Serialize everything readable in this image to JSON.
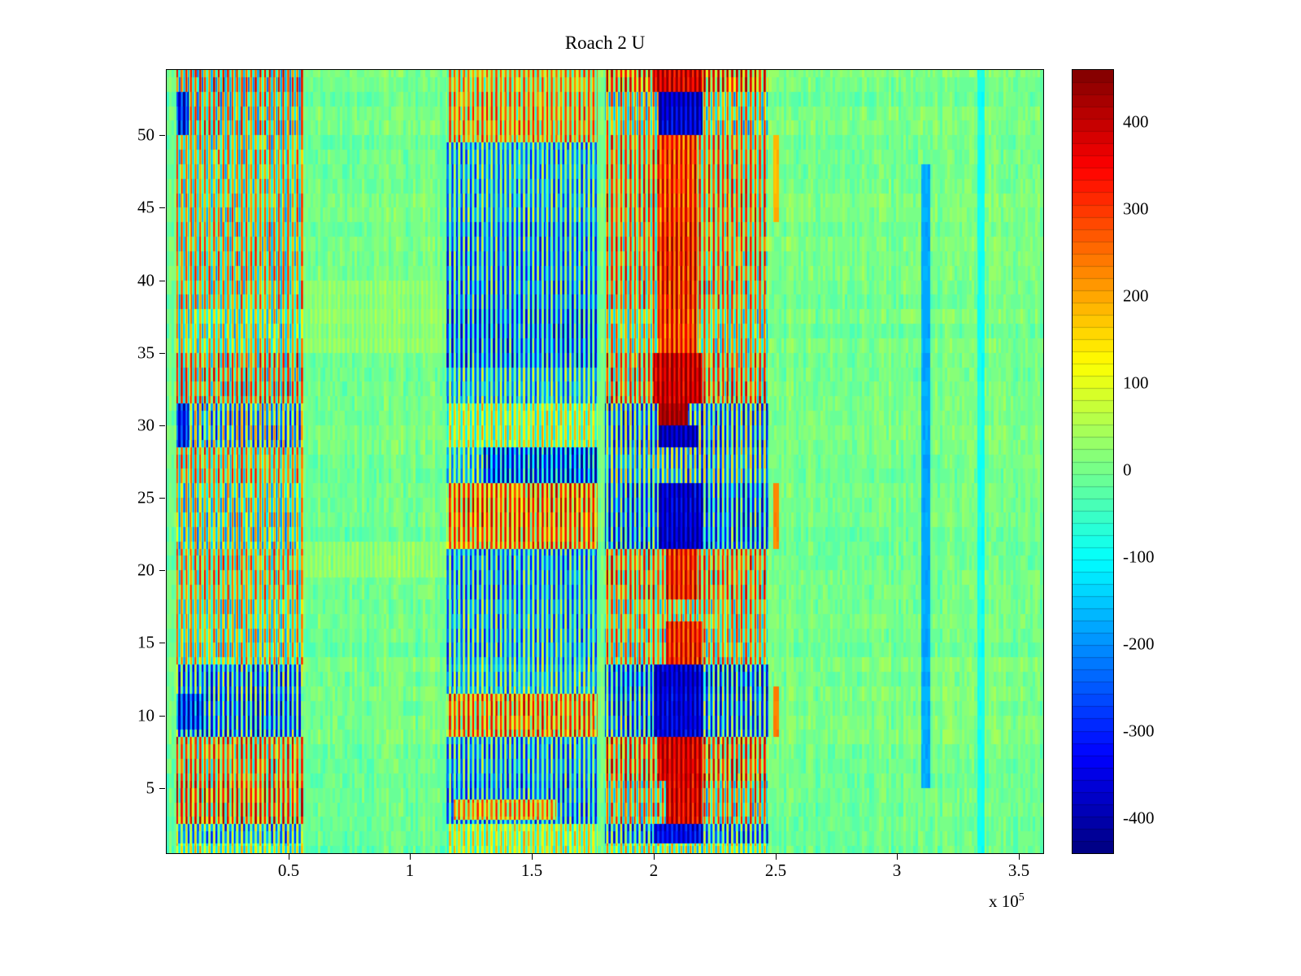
{
  "chart_data": {
    "type": "heatmap",
    "title": "Roach 2 U",
    "colormap": "jet",
    "x_axis": {
      "range_units_1e5": [
        0,
        3.6
      ],
      "ticks": [
        0.5,
        1,
        1.5,
        2,
        2.5,
        3,
        3.5
      ],
      "tick_labels": [
        "0.5",
        "1",
        "1.5",
        "2",
        "2.5",
        "3",
        "3.5"
      ],
      "multiplier_base": "x 10",
      "multiplier_exponent": "5"
    },
    "y_axis": {
      "range": [
        0.5,
        54.5
      ],
      "ticks": [
        5,
        10,
        15,
        20,
        25,
        30,
        35,
        40,
        45,
        50
      ],
      "tick_labels": [
        "5",
        "10",
        "15",
        "20",
        "25",
        "30",
        "35",
        "40",
        "45",
        "50"
      ]
    },
    "colorbar": {
      "range": [
        -440,
        460
      ],
      "ticks": [
        -400,
        -300,
        -200,
        -100,
        0,
        100,
        200,
        300,
        400
      ],
      "tick_labels": [
        "-400",
        "-300",
        "-200",
        "-100",
        "0",
        "100",
        "200",
        "300",
        "400"
      ],
      "levels": 64
    },
    "stripe_period_1e5": 0.019,
    "background": {
      "base_value": 0,
      "noise_amplitude": 55
    },
    "regions_comment": "Estimated activity bands [x0,x1,y0,y1,baseValue,stripeAmplitude]; x in 1e5 units, values in colorbar units",
    "regions": [
      [
        0.04,
        0.56,
        53,
        54.5,
        80,
        380
      ],
      [
        0.04,
        0.56,
        50,
        53,
        60,
        350
      ],
      [
        0.04,
        0.56,
        44,
        50,
        60,
        300
      ],
      [
        0.04,
        0.56,
        38,
        44,
        70,
        310
      ],
      [
        0.04,
        0.56,
        35,
        38,
        30,
        260
      ],
      [
        0.04,
        0.56,
        31.5,
        35,
        110,
        340
      ],
      [
        0.04,
        0.56,
        28.5,
        31.5,
        -60,
        340
      ],
      [
        0.04,
        0.56,
        26,
        28.5,
        90,
        300
      ],
      [
        0.04,
        0.56,
        21.5,
        26,
        20,
        300
      ],
      [
        0.04,
        0.56,
        18,
        21.5,
        90,
        300
      ],
      [
        0.04,
        0.56,
        13.5,
        18,
        50,
        280
      ],
      [
        0.04,
        0.56,
        11.5,
        13.5,
        -140,
        300
      ],
      [
        0.04,
        0.56,
        8.5,
        11.5,
        -170,
        310
      ],
      [
        0.04,
        0.56,
        5.5,
        8.5,
        140,
        300
      ],
      [
        0.04,
        0.56,
        2.5,
        5.5,
        180,
        320
      ],
      [
        0.04,
        0.56,
        1.2,
        2.5,
        -80,
        280
      ],
      [
        0.04,
        0.56,
        0.5,
        1.2,
        20,
        220
      ],
      [
        1.15,
        1.77,
        53,
        54.5,
        120,
        220
      ],
      [
        1.15,
        1.77,
        49.5,
        53,
        140,
        240
      ],
      [
        1.15,
        1.77,
        44,
        49.5,
        -110,
        240
      ],
      [
        1.15,
        1.77,
        38,
        44,
        -140,
        260
      ],
      [
        1.15,
        1.77,
        34,
        38,
        -170,
        280
      ],
      [
        1.15,
        1.77,
        31.5,
        34,
        -90,
        230
      ],
      [
        1.15,
        1.77,
        28.5,
        31.5,
        40,
        200
      ],
      [
        1.15,
        1.77,
        26,
        28.5,
        -80,
        220
      ],
      [
        1.3,
        1.77,
        26,
        28.5,
        -240,
        280
      ],
      [
        1.15,
        1.77,
        21.5,
        26,
        190,
        260
      ],
      [
        1.15,
        1.77,
        18,
        21.5,
        -130,
        250
      ],
      [
        1.15,
        1.77,
        13.5,
        18,
        -110,
        250
      ],
      [
        1.15,
        1.77,
        11.5,
        13.5,
        -90,
        230
      ],
      [
        1.15,
        1.77,
        8.5,
        11.5,
        170,
        260
      ],
      [
        1.15,
        1.77,
        5.5,
        8.5,
        -120,
        250
      ],
      [
        1.15,
        1.77,
        2.5,
        5.5,
        -140,
        260
      ],
      [
        1.18,
        1.6,
        2.8,
        4.2,
        150,
        220
      ],
      [
        1.15,
        1.77,
        0.5,
        2.5,
        60,
        180
      ],
      [
        1.8,
        2.47,
        53,
        54.5,
        200,
        300
      ],
      [
        1.8,
        2.47,
        50,
        53,
        60,
        320
      ],
      [
        1.8,
        2.47,
        44,
        50,
        140,
        300
      ],
      [
        1.8,
        2.47,
        38,
        44,
        120,
        310
      ],
      [
        1.8,
        2.47,
        35,
        38,
        60,
        290
      ],
      [
        1.8,
        2.47,
        31.5,
        35,
        140,
        330
      ],
      [
        1.8,
        2.47,
        28.5,
        31.5,
        -120,
        330
      ],
      [
        1.8,
        2.47,
        26,
        28.5,
        -80,
        300
      ],
      [
        1.8,
        2.47,
        21.5,
        26,
        -160,
        300
      ],
      [
        1.8,
        2.47,
        18,
        21.5,
        140,
        310
      ],
      [
        1.8,
        2.47,
        13.5,
        18,
        90,
        300
      ],
      [
        1.8,
        2.47,
        11.5,
        13.5,
        -180,
        300
      ],
      [
        1.8,
        2.47,
        8.5,
        11.5,
        -150,
        300
      ],
      [
        1.8,
        2.47,
        5.5,
        8.5,
        170,
        310
      ],
      [
        1.8,
        2.47,
        2.5,
        5.5,
        90,
        330
      ],
      [
        1.8,
        2.47,
        1.2,
        2.5,
        -130,
        300
      ],
      [
        1.8,
        2.47,
        0.5,
        1.2,
        40,
        240
      ],
      [
        2.0,
        2.2,
        53,
        54.5,
        380,
        120
      ],
      [
        2.02,
        2.2,
        50,
        53,
        -380,
        100
      ],
      [
        2.02,
        2.18,
        44,
        50,
        300,
        150
      ],
      [
        2.02,
        2.18,
        38,
        44,
        320,
        150
      ],
      [
        2.02,
        2.18,
        35,
        38,
        300,
        150
      ],
      [
        2.0,
        2.2,
        31.5,
        35,
        400,
        100
      ],
      [
        2.02,
        2.14,
        30,
        31.5,
        430,
        60
      ],
      [
        2.02,
        2.18,
        28.5,
        30,
        -400,
        80
      ],
      [
        2.02,
        2.2,
        21.5,
        26,
        -380,
        90
      ],
      [
        2.05,
        2.18,
        18,
        21.5,
        330,
        130
      ],
      [
        2.05,
        2.2,
        13.5,
        16.5,
        330,
        120
      ],
      [
        2.0,
        2.2,
        11.5,
        13.5,
        -380,
        90
      ],
      [
        2.0,
        2.2,
        8.5,
        11.5,
        -370,
        90
      ],
      [
        2.02,
        2.2,
        5.5,
        8.5,
        390,
        90
      ],
      [
        2.05,
        2.2,
        2.5,
        5.5,
        380,
        100
      ],
      [
        2.0,
        2.2,
        1.2,
        2.5,
        -340,
        90
      ],
      [
        0.04,
        0.09,
        50,
        53,
        -320,
        150
      ],
      [
        0.04,
        0.09,
        28.5,
        31.5,
        -320,
        150
      ],
      [
        0.04,
        0.15,
        9,
        11.5,
        -300,
        200
      ],
      [
        2.49,
        2.515,
        8.5,
        12,
        230,
        0
      ],
      [
        2.49,
        2.515,
        21.5,
        26,
        230,
        0
      ],
      [
        2.49,
        2.515,
        44,
        50,
        180,
        0
      ],
      [
        3.1,
        3.135,
        5,
        48,
        -180,
        0
      ],
      [
        3.33,
        3.36,
        0.5,
        54.5,
        -90,
        0
      ],
      [
        0.56,
        1.15,
        19.5,
        22,
        30,
        30
      ],
      [
        0.56,
        1.15,
        35,
        40,
        25,
        25
      ]
    ]
  }
}
